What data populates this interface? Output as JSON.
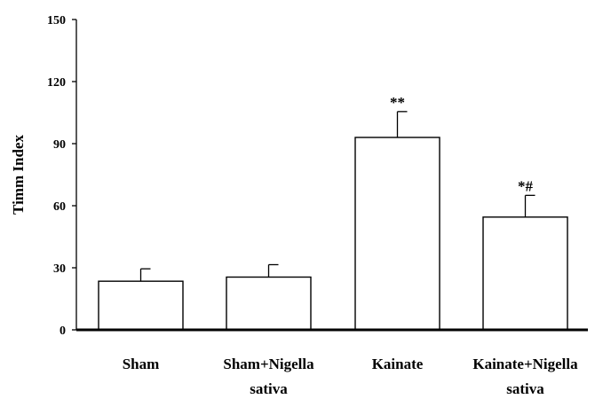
{
  "chart_data": {
    "type": "bar",
    "title": "",
    "xlabel": "",
    "ylabel": "Timm Index",
    "ylim": [
      0,
      150
    ],
    "yticks": [
      0,
      30,
      60,
      90,
      120,
      150
    ],
    "grid": false,
    "legend": "none",
    "categories": [
      [
        "Sham"
      ],
      [
        "Sham+Nigella",
        "sativa"
      ],
      [
        "Kainate"
      ],
      [
        "Kainate+Nigella",
        "sativa"
      ]
    ],
    "values": [
      23.5,
      25.5,
      93,
      54.5
    ],
    "errors": [
      6,
      6,
      12.5,
      10.5
    ],
    "annotations": [
      "",
      "",
      "**",
      "*#"
    ],
    "colors": {
      "bar_fill": "#ffffff",
      "bar_stroke": "#000000",
      "axis": "#000000"
    }
  }
}
